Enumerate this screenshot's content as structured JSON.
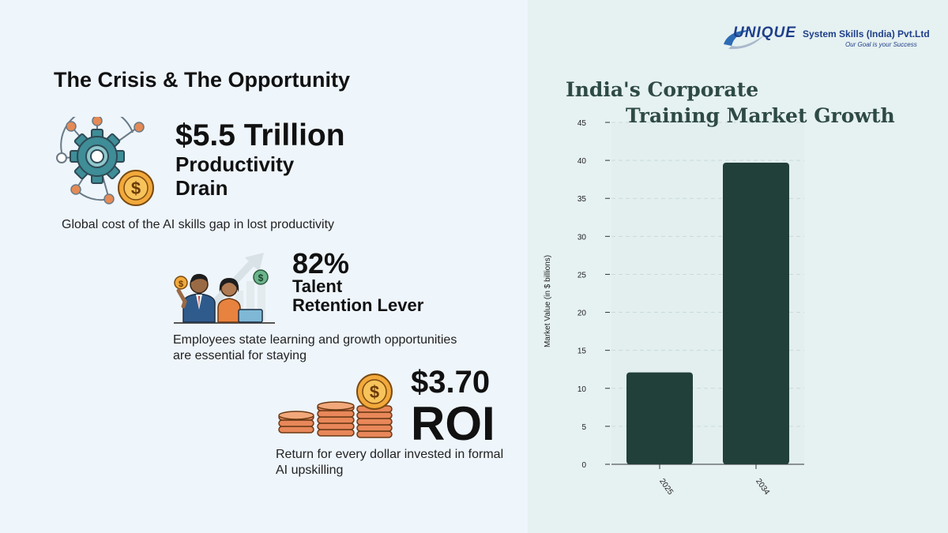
{
  "left": {
    "title": "The Crisis & The Opportunity",
    "stats": [
      {
        "value": "$5.5 Trillion",
        "label_line1": "Productivity",
        "label_line2": "Drain",
        "description": "Global cost of the AI skills gap in lost productivity",
        "icon": "gear-network-coin-icon"
      },
      {
        "value": "82%",
        "label_line1": "Talent",
        "label_line2": "Retention Lever",
        "description": "Employees state learning and growth opportunities are essential for staying",
        "icon": "employees-growth-icon"
      },
      {
        "value": "$3.70",
        "label_line1": "ROI",
        "description": "Return for every dollar invested in formal AI upskilling",
        "icon": "coin-stacks-icon"
      }
    ]
  },
  "logo": {
    "name": "UNIQUE",
    "rest": "System Skills (India) Pvt.Ltd",
    "tagline": "Our Goal is your Success"
  },
  "chart_data": {
    "type": "bar",
    "title_line1": "India's Corporate",
    "title_line2": "Training Market Growth",
    "categories": [
      "2025",
      "2034"
    ],
    "values": [
      12.1,
      39.7
    ],
    "ylabel": "Market Value (in $ billions)",
    "xlabel": "",
    "ylim": [
      0,
      45
    ],
    "yticks": [
      0,
      5,
      10,
      15,
      20,
      25,
      30,
      35,
      40,
      45
    ],
    "grid": true,
    "bar_color": "#22403a",
    "plot_bg": "#e3efef"
  }
}
